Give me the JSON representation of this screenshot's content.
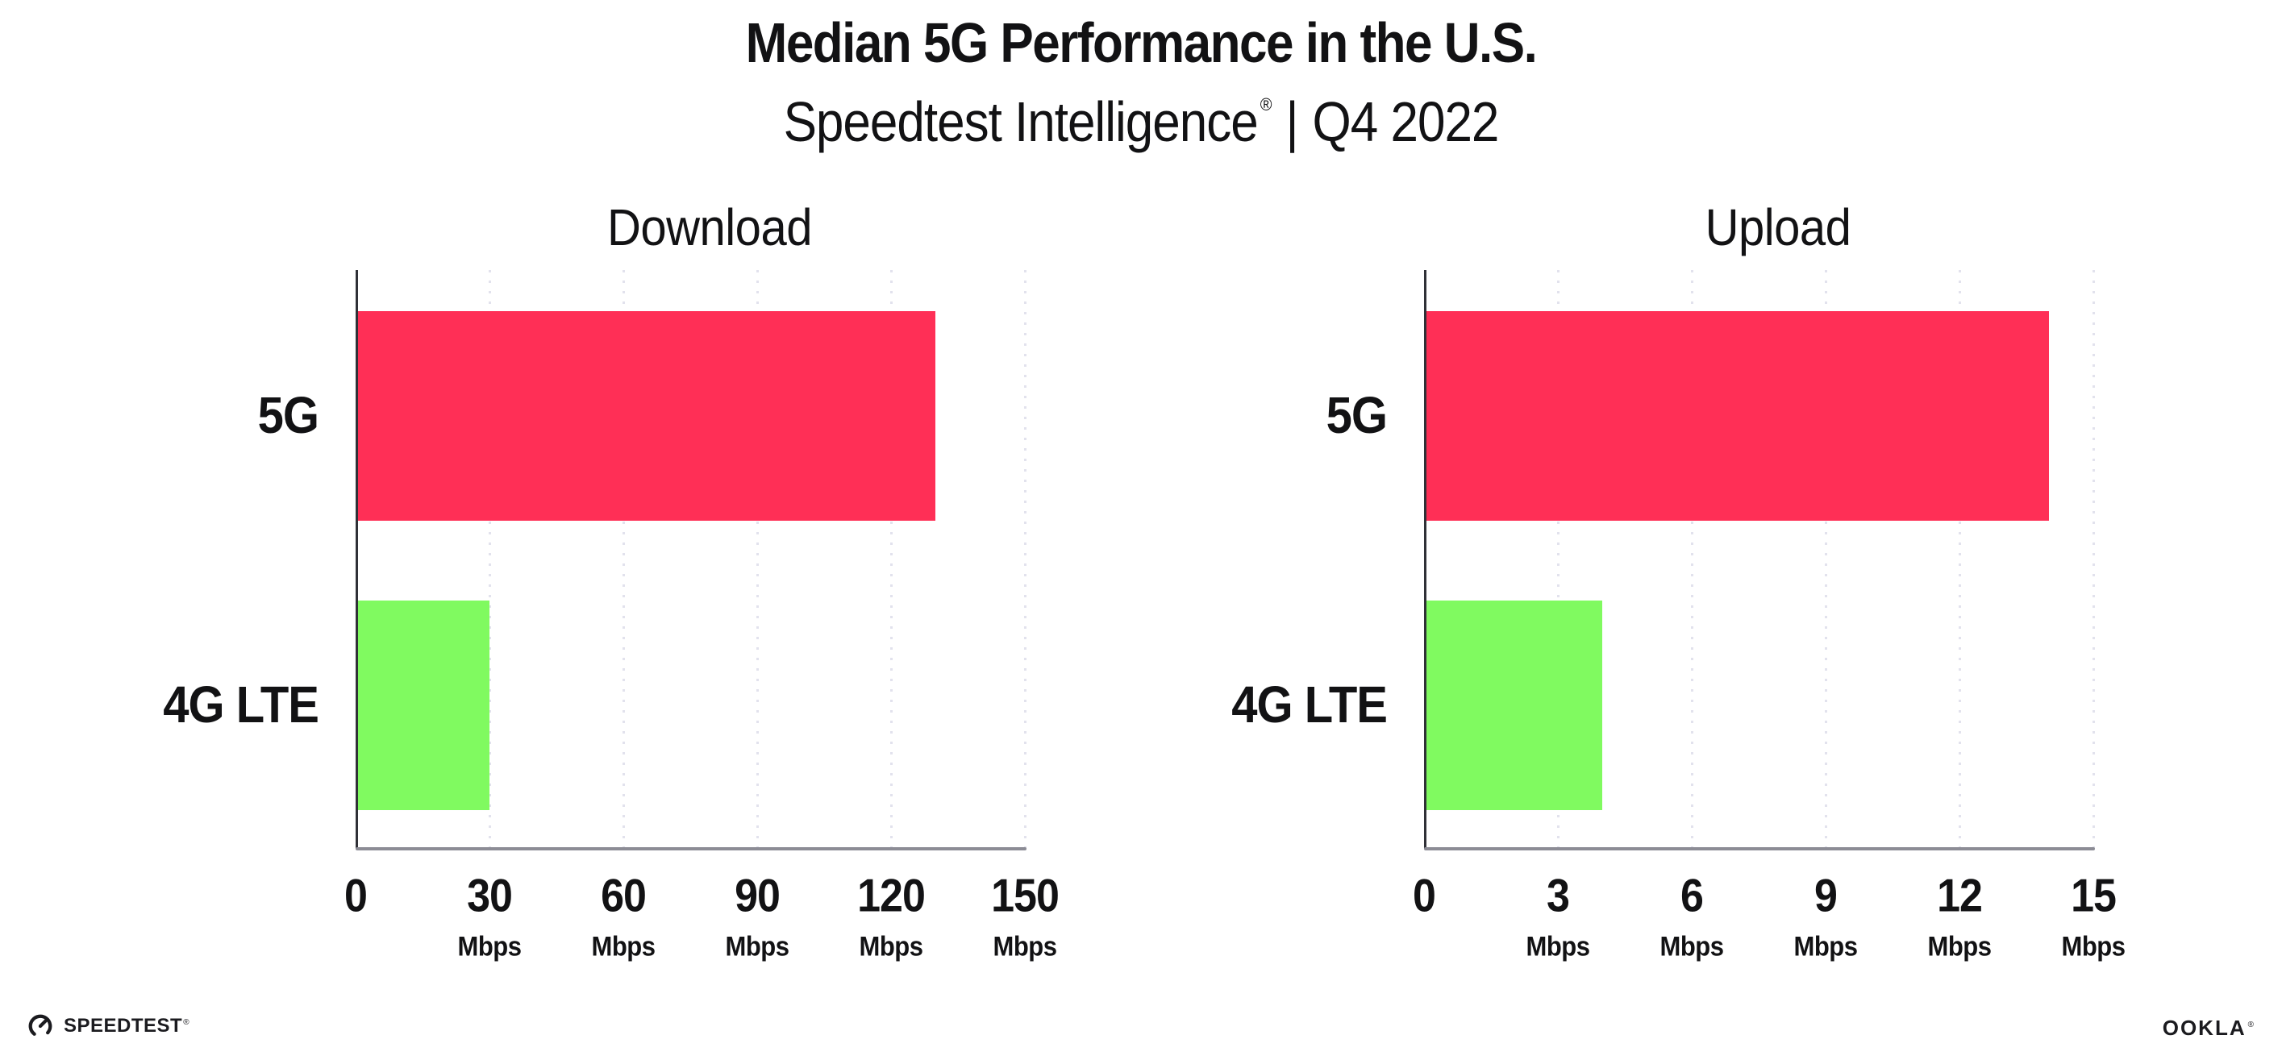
{
  "header": {
    "title": "Median 5G Performance in the U.S.",
    "subtitle": {
      "product": "Speedtest Intelligence",
      "registered_mark": "®",
      "separator": "|",
      "period": "Q4 2022"
    }
  },
  "chart_data": [
    {
      "type": "bar",
      "orientation": "horizontal",
      "title": "Download",
      "categories": [
        "5G",
        "4G LTE"
      ],
      "values": [
        130,
        30
      ],
      "unit": "Mbps",
      "xlim": [
        0,
        150
      ],
      "xticks": [
        0,
        30,
        60,
        90,
        120,
        150
      ],
      "grid": "vertical-dotted",
      "legend": "none",
      "bar_colors": [
        "#FF2F56",
        "#80FA60"
      ]
    },
    {
      "type": "bar",
      "orientation": "horizontal",
      "title": "Upload",
      "categories": [
        "5G",
        "4G LTE"
      ],
      "values": [
        14,
        4
      ],
      "unit": "Mbps",
      "xlim": [
        0,
        15
      ],
      "xticks": [
        0,
        3,
        6,
        9,
        12,
        15
      ],
      "grid": "vertical-dotted",
      "legend": "none",
      "bar_colors": [
        "#FF2F56",
        "#80FA60"
      ]
    }
  ],
  "footer": {
    "speedtest_wordmark": "SPEEDTEST",
    "speedtest_registered_mark": "®",
    "ookla_wordmark": "OOKLA",
    "ookla_registered_mark": "®"
  },
  "colors": {
    "background": "#FFFFFF",
    "bar_5g": "#FF2F56",
    "bar_4g_lte": "#80FA60",
    "gridline": "#E2E2ED",
    "x_axis": "#8C8C95",
    "y_axis": "#303137",
    "text": "#121214"
  }
}
